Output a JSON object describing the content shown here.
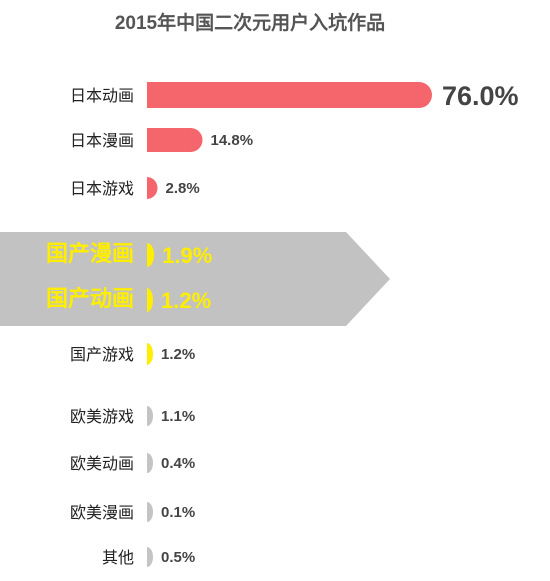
{
  "chart_data": {
    "type": "bar",
    "orientation": "horizontal",
    "title": "2015年中国二次元用户入坑作品",
    "unit": "%",
    "categories": [
      "日本动画",
      "日本漫画",
      "日本游戏",
      "国产漫画",
      "国产动画",
      "国产游戏",
      "欧美游戏",
      "欧美动画",
      "欧美漫画",
      "其他"
    ],
    "values": [
      76.0,
      14.8,
      2.8,
      1.9,
      1.2,
      1.2,
      1.1,
      0.4,
      0.1,
      0.5
    ],
    "value_labels": [
      "76.0%",
      "14.8%",
      "2.8%",
      "1.9%",
      "1.2%",
      "1.2%",
      "1.1%",
      "0.4%",
      "0.1%",
      "0.5%"
    ],
    "highlighted": [
      "国产漫画",
      "国产动画"
    ],
    "colors": {
      "japan": "#f4666b",
      "china": "#ffee00",
      "western": "#c4c4c4",
      "highlight_band": "#c2c2c2",
      "highlight_text": "#ffee00"
    },
    "grid": false,
    "legend": "none"
  }
}
